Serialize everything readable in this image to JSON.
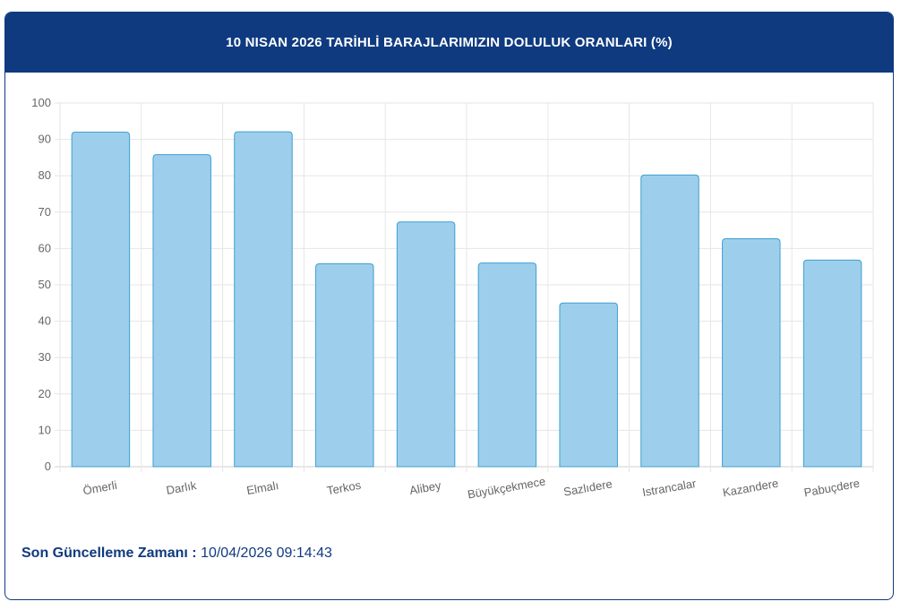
{
  "header": {
    "title": "10 NISAN 2026 TARİHLİ BARAJLARIMIZIN DOLULUK ORANLARI (%)"
  },
  "footer": {
    "label": "Son Güncelleme Zamanı :",
    "value": "10/04/2026 09:14:43"
  },
  "colors": {
    "header_bg": "#0f3a80",
    "bar_fill": "#9dcfec",
    "bar_stroke": "#3f9fd1"
  },
  "chart_data": {
    "type": "bar",
    "categories": [
      "Ömerli",
      "Darlık",
      "Elmalı",
      "Terkos",
      "Alibey",
      "Büyükçekmece",
      "Sazlıdere",
      "Istrancalar",
      "Kazandere",
      "Pabuçdere"
    ],
    "values": [
      92.0,
      85.8,
      92.1,
      55.8,
      67.3,
      56.0,
      45.0,
      80.2,
      62.7,
      56.8
    ],
    "ylim": [
      0,
      100
    ],
    "yticks": [
      "0",
      "10",
      "20",
      "30",
      "40",
      "50",
      "60",
      "70",
      "80",
      "90",
      "100"
    ],
    "grid": true
  }
}
